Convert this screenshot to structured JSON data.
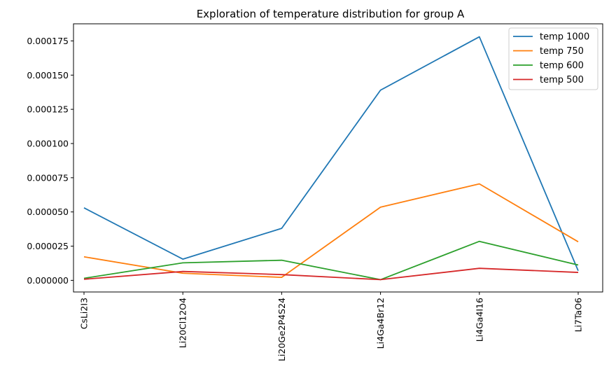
{
  "chart_data": {
    "type": "line",
    "title": "Exploration of temperature distribution for group A",
    "xlabel": "",
    "ylabel": "",
    "categories": [
      "CsLi2I3",
      "Li20Cl12O4",
      "Li20Ge2P4S24",
      "Li4Ga4Br12",
      "Li4Ga4I16",
      "Li7TaO6"
    ],
    "ylim": [
      -8.5e-06,
      0.0001875
    ],
    "yticks": [
      "0.000000",
      "0.000025",
      "0.000050",
      "0.000075",
      "0.000100",
      "0.000125",
      "0.000150",
      "0.000175"
    ],
    "yticks_values": [
      0,
      2.5e-05,
      5e-05,
      7.5e-05,
      0.0001,
      0.000125,
      0.00015,
      0.000175
    ],
    "grid": false,
    "legend_position": "top-right",
    "series": [
      {
        "name": "temp 1000",
        "color": "#1f77b4",
        "values": [
          5.3e-05,
          1.55e-05,
          3.8e-05,
          0.000139,
          0.000178,
          7e-06
        ]
      },
      {
        "name": "temp 750",
        "color": "#ff7f0e",
        "values": [
          1.72e-05,
          5.2e-06,
          2.2e-06,
          5.35e-05,
          7.05e-05,
          2.82e-05
        ]
      },
      {
        "name": "temp 600",
        "color": "#2ca02c",
        "values": [
          1.5e-06,
          1.28e-05,
          1.47e-05,
          5e-07,
          2.85e-05,
          1.12e-05
        ]
      },
      {
        "name": "temp 500",
        "color": "#d62728",
        "values": [
          8e-07,
          6.5e-06,
          4.2e-06,
          5e-07,
          8.8e-06,
          5.8e-06
        ]
      }
    ]
  }
}
